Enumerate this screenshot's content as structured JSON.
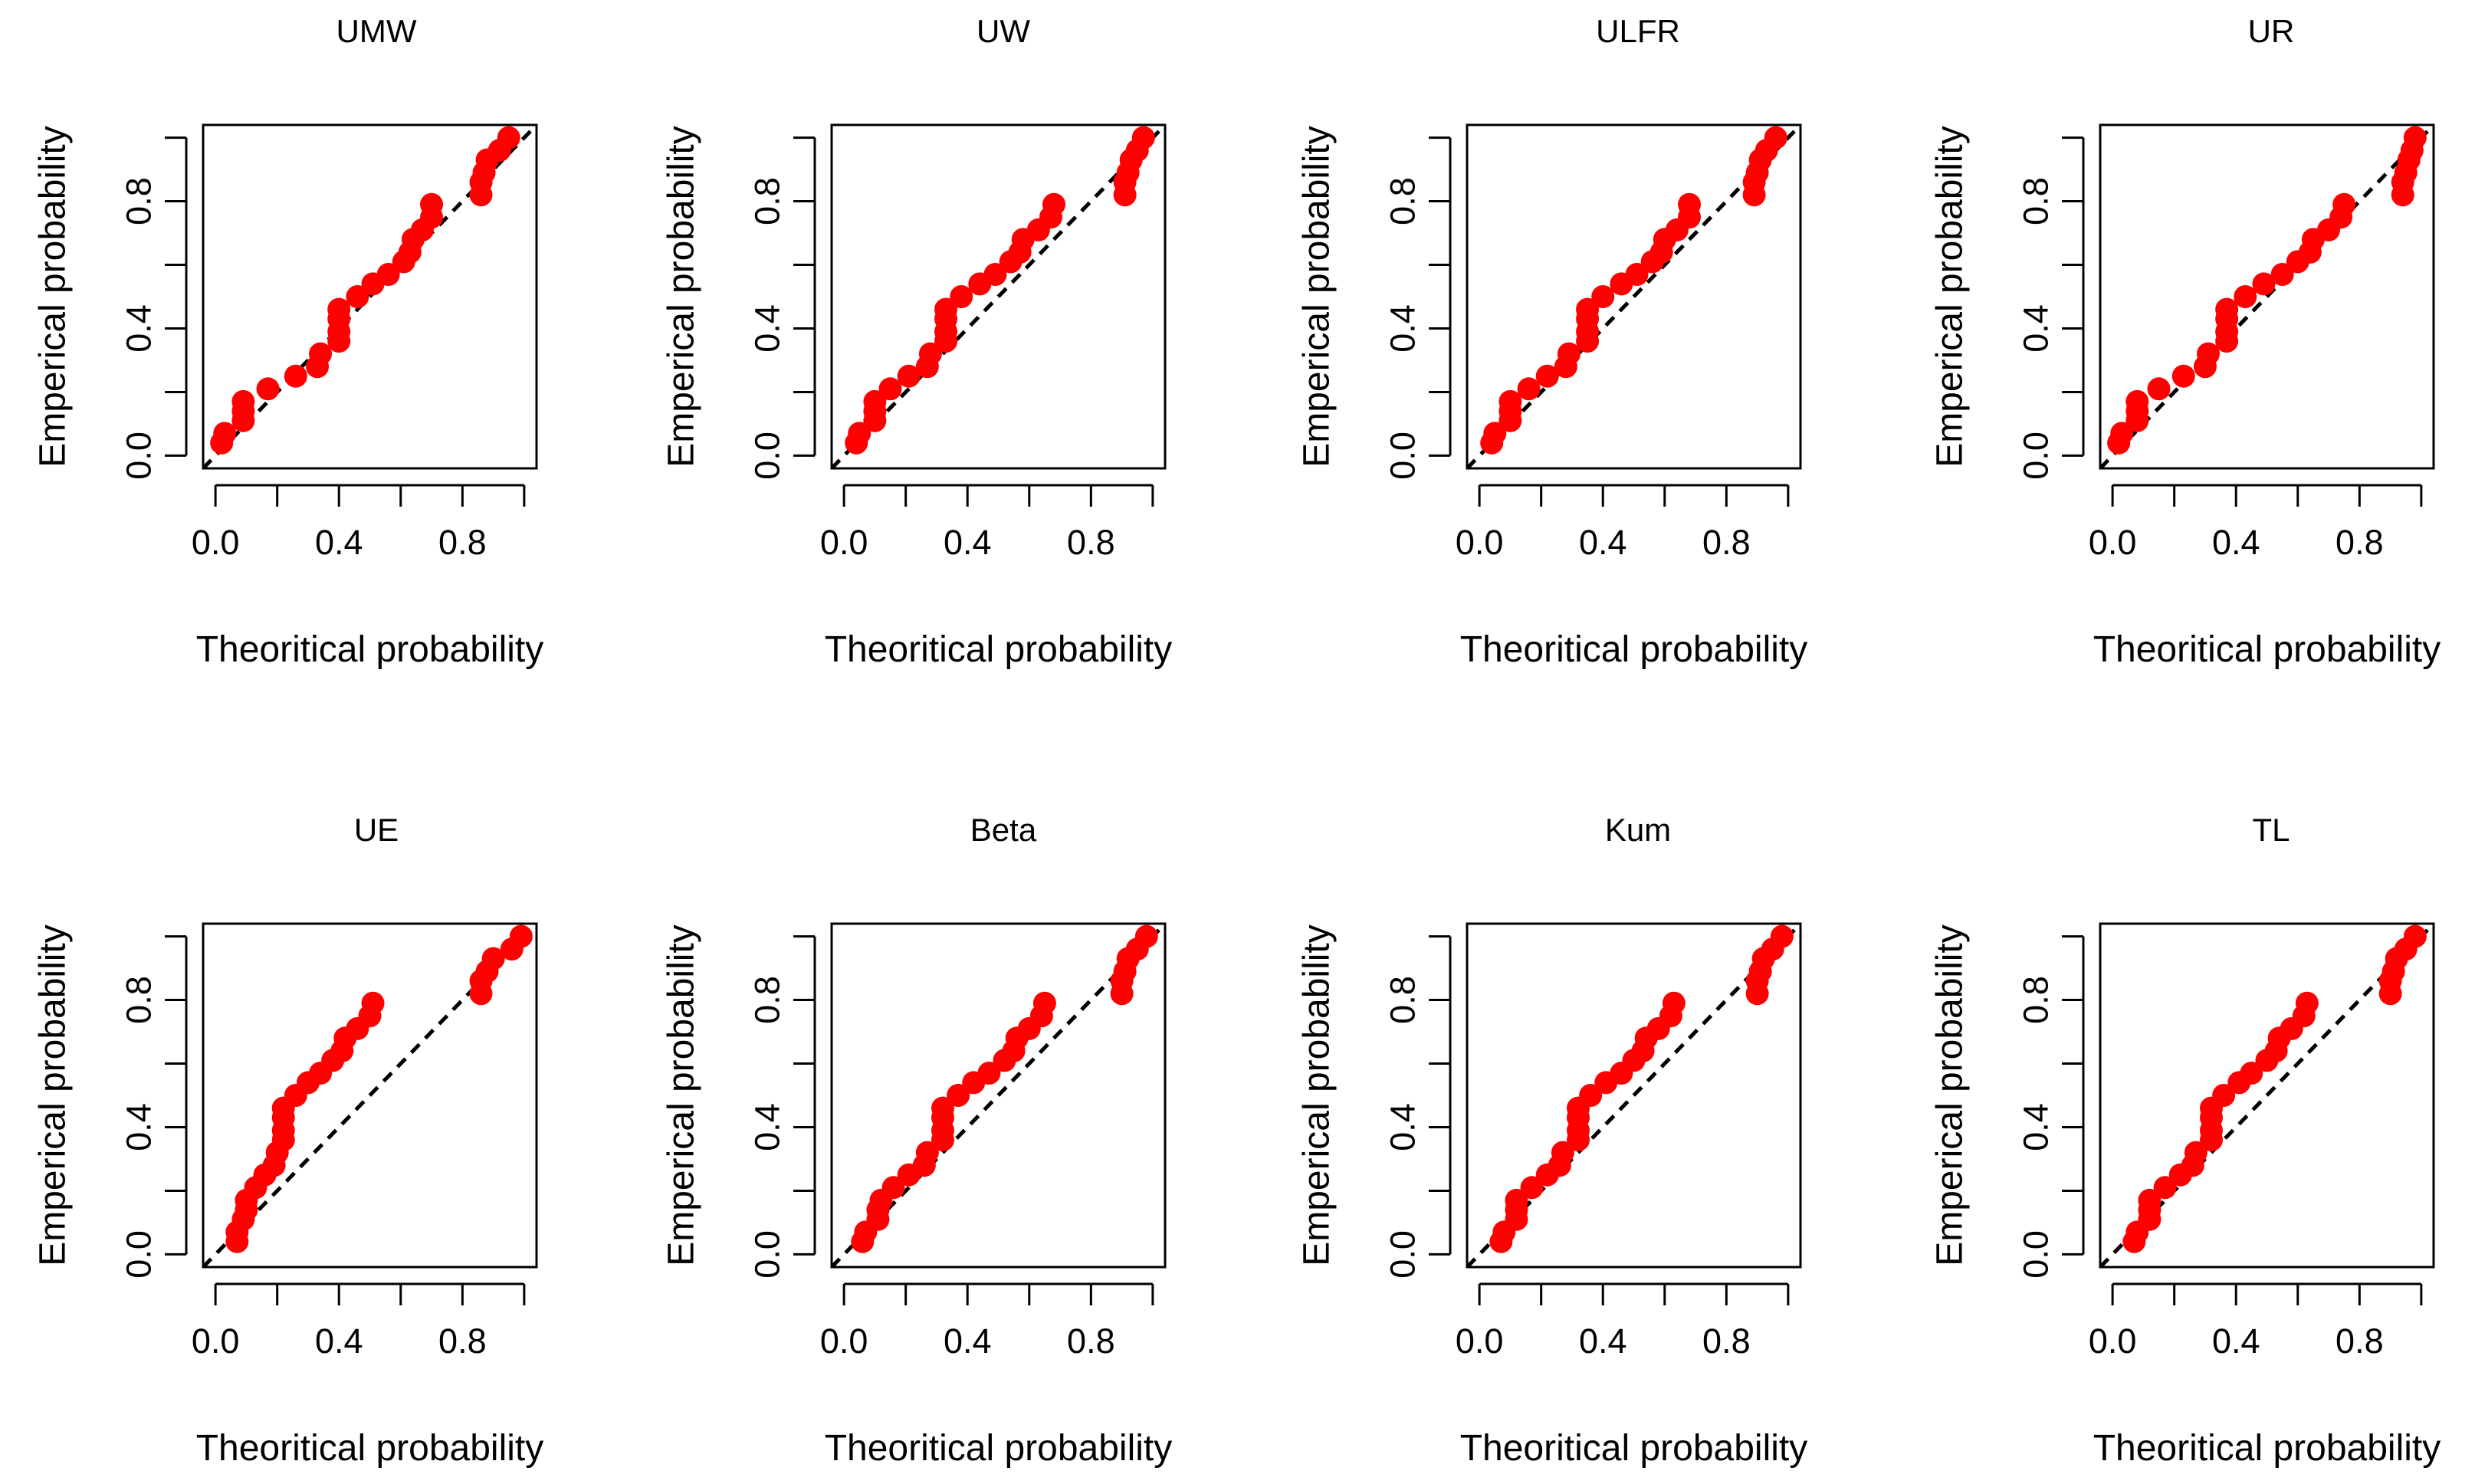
{
  "colors": {
    "points": "#ff0000",
    "reference_line": "#000000",
    "frame": "#000000",
    "background": "#ffffff"
  },
  "chart_data": [
    {
      "type": "scatter",
      "title": "UMW",
      "xlabel": "Theoritical probability",
      "ylabel": "Emperical probability",
      "xlim": [
        0,
        1
      ],
      "ylim": [
        0,
        1
      ],
      "xticks": [
        "0.0",
        "0.4",
        "0.8"
      ],
      "yticks": [
        "0.0",
        "0.4",
        "0.8"
      ],
      "reference_line": "y = x",
      "points": [
        [
          0.02,
          0.04
        ],
        [
          0.03,
          0.07
        ],
        [
          0.09,
          0.11
        ],
        [
          0.09,
          0.14
        ],
        [
          0.09,
          0.17
        ],
        [
          0.17,
          0.21
        ],
        [
          0.26,
          0.25
        ],
        [
          0.33,
          0.28
        ],
        [
          0.34,
          0.32
        ],
        [
          0.4,
          0.36
        ],
        [
          0.4,
          0.39
        ],
        [
          0.4,
          0.43
        ],
        [
          0.4,
          0.46
        ],
        [
          0.46,
          0.5
        ],
        [
          0.51,
          0.54
        ],
        [
          0.56,
          0.57
        ],
        [
          0.61,
          0.61
        ],
        [
          0.63,
          0.64
        ],
        [
          0.64,
          0.68
        ],
        [
          0.67,
          0.71
        ],
        [
          0.7,
          0.75
        ],
        [
          0.7,
          0.79
        ],
        [
          0.86,
          0.82
        ],
        [
          0.86,
          0.86
        ],
        [
          0.87,
          0.89
        ],
        [
          0.88,
          0.93
        ],
        [
          0.92,
          0.96
        ],
        [
          0.95,
          1.0
        ]
      ]
    },
    {
      "type": "scatter",
      "title": "UW",
      "xlabel": "Theoritical probability",
      "ylabel": "Emperical probability",
      "xlim": [
        0,
        1
      ],
      "ylim": [
        0,
        1
      ],
      "xticks": [
        "0.0",
        "0.4",
        "0.8"
      ],
      "yticks": [
        "0.0",
        "0.4",
        "0.8"
      ],
      "reference_line": "y = x",
      "points": [
        [
          0.04,
          0.04
        ],
        [
          0.05,
          0.07
        ],
        [
          0.1,
          0.11
        ],
        [
          0.1,
          0.14
        ],
        [
          0.1,
          0.17
        ],
        [
          0.15,
          0.21
        ],
        [
          0.21,
          0.25
        ],
        [
          0.27,
          0.28
        ],
        [
          0.28,
          0.32
        ],
        [
          0.33,
          0.36
        ],
        [
          0.33,
          0.39
        ],
        [
          0.33,
          0.43
        ],
        [
          0.33,
          0.46
        ],
        [
          0.38,
          0.5
        ],
        [
          0.44,
          0.54
        ],
        [
          0.49,
          0.57
        ],
        [
          0.54,
          0.61
        ],
        [
          0.57,
          0.64
        ],
        [
          0.58,
          0.68
        ],
        [
          0.63,
          0.71
        ],
        [
          0.67,
          0.75
        ],
        [
          0.68,
          0.79
        ],
        [
          0.91,
          0.82
        ],
        [
          0.91,
          0.86
        ],
        [
          0.92,
          0.89
        ],
        [
          0.93,
          0.93
        ],
        [
          0.95,
          0.96
        ],
        [
          0.97,
          1.0
        ]
      ]
    },
    {
      "type": "scatter",
      "title": "ULFR",
      "xlabel": "Theoritical probability",
      "ylabel": "Emperical probability",
      "xlim": [
        0,
        1
      ],
      "ylim": [
        0,
        1
      ],
      "xticks": [
        "0.0",
        "0.4",
        "0.8"
      ],
      "yticks": [
        "0.0",
        "0.4",
        "0.8"
      ],
      "reference_line": "y = x",
      "points": [
        [
          0.04,
          0.04
        ],
        [
          0.05,
          0.07
        ],
        [
          0.1,
          0.11
        ],
        [
          0.1,
          0.14
        ],
        [
          0.1,
          0.17
        ],
        [
          0.16,
          0.21
        ],
        [
          0.22,
          0.25
        ],
        [
          0.28,
          0.28
        ],
        [
          0.29,
          0.32
        ],
        [
          0.35,
          0.36
        ],
        [
          0.35,
          0.39
        ],
        [
          0.35,
          0.43
        ],
        [
          0.35,
          0.46
        ],
        [
          0.4,
          0.5
        ],
        [
          0.46,
          0.54
        ],
        [
          0.51,
          0.57
        ],
        [
          0.56,
          0.61
        ],
        [
          0.59,
          0.64
        ],
        [
          0.6,
          0.68
        ],
        [
          0.64,
          0.71
        ],
        [
          0.68,
          0.75
        ],
        [
          0.68,
          0.79
        ],
        [
          0.89,
          0.82
        ],
        [
          0.89,
          0.86
        ],
        [
          0.9,
          0.89
        ],
        [
          0.91,
          0.93
        ],
        [
          0.93,
          0.96
        ],
        [
          0.96,
          1.0
        ]
      ]
    },
    {
      "type": "scatter",
      "title": "UR",
      "xlabel": "Theoritical probability",
      "ylabel": "Emperical probability",
      "xlim": [
        0,
        1
      ],
      "ylim": [
        0,
        1
      ],
      "xticks": [
        "0.0",
        "0.4",
        "0.8"
      ],
      "yticks": [
        "0.0",
        "0.4",
        "0.8"
      ],
      "reference_line": "y = x",
      "points": [
        [
          0.02,
          0.04
        ],
        [
          0.03,
          0.07
        ],
        [
          0.08,
          0.11
        ],
        [
          0.08,
          0.14
        ],
        [
          0.08,
          0.17
        ],
        [
          0.15,
          0.21
        ],
        [
          0.23,
          0.25
        ],
        [
          0.3,
          0.28
        ],
        [
          0.31,
          0.32
        ],
        [
          0.37,
          0.36
        ],
        [
          0.37,
          0.39
        ],
        [
          0.37,
          0.43
        ],
        [
          0.37,
          0.46
        ],
        [
          0.43,
          0.5
        ],
        [
          0.49,
          0.54
        ],
        [
          0.55,
          0.57
        ],
        [
          0.6,
          0.61
        ],
        [
          0.64,
          0.64
        ],
        [
          0.65,
          0.68
        ],
        [
          0.7,
          0.71
        ],
        [
          0.74,
          0.75
        ],
        [
          0.75,
          0.79
        ],
        [
          0.94,
          0.82
        ],
        [
          0.94,
          0.86
        ],
        [
          0.95,
          0.89
        ],
        [
          0.96,
          0.93
        ],
        [
          0.97,
          0.96
        ],
        [
          0.98,
          1.0
        ]
      ]
    },
    {
      "type": "scatter",
      "title": "UE",
      "xlabel": "Theoritical probability",
      "ylabel": "Emperical probability",
      "xlim": [
        0,
        1
      ],
      "ylim": [
        0,
        1
      ],
      "xticks": [
        "0.0",
        "0.4",
        "0.8"
      ],
      "yticks": [
        "0.0",
        "0.4",
        "0.8"
      ],
      "reference_line": "y = x",
      "points": [
        [
          0.07,
          0.04
        ],
        [
          0.07,
          0.07
        ],
        [
          0.09,
          0.11
        ],
        [
          0.1,
          0.14
        ],
        [
          0.1,
          0.17
        ],
        [
          0.13,
          0.21
        ],
        [
          0.16,
          0.25
        ],
        [
          0.19,
          0.28
        ],
        [
          0.2,
          0.32
        ],
        [
          0.22,
          0.36
        ],
        [
          0.22,
          0.39
        ],
        [
          0.22,
          0.43
        ],
        [
          0.22,
          0.46
        ],
        [
          0.26,
          0.5
        ],
        [
          0.3,
          0.54
        ],
        [
          0.34,
          0.57
        ],
        [
          0.38,
          0.61
        ],
        [
          0.41,
          0.64
        ],
        [
          0.42,
          0.68
        ],
        [
          0.46,
          0.71
        ],
        [
          0.5,
          0.75
        ],
        [
          0.51,
          0.79
        ],
        [
          0.86,
          0.82
        ],
        [
          0.86,
          0.86
        ],
        [
          0.88,
          0.89
        ],
        [
          0.9,
          0.93
        ],
        [
          0.96,
          0.96
        ],
        [
          0.99,
          1.0
        ]
      ]
    },
    {
      "type": "scatter",
      "title": "Beta",
      "xlabel": "Theoritical probability",
      "ylabel": "Emperical probability",
      "xlim": [
        0,
        1
      ],
      "ylim": [
        0,
        1
      ],
      "xticks": [
        "0.0",
        "0.4",
        "0.8"
      ],
      "yticks": [
        "0.0",
        "0.4",
        "0.8"
      ],
      "reference_line": "y = x",
      "points": [
        [
          0.06,
          0.04
        ],
        [
          0.07,
          0.07
        ],
        [
          0.11,
          0.11
        ],
        [
          0.11,
          0.14
        ],
        [
          0.12,
          0.17
        ],
        [
          0.16,
          0.21
        ],
        [
          0.21,
          0.25
        ],
        [
          0.26,
          0.28
        ],
        [
          0.27,
          0.32
        ],
        [
          0.32,
          0.36
        ],
        [
          0.32,
          0.39
        ],
        [
          0.32,
          0.43
        ],
        [
          0.32,
          0.46
        ],
        [
          0.37,
          0.5
        ],
        [
          0.42,
          0.54
        ],
        [
          0.47,
          0.57
        ],
        [
          0.52,
          0.61
        ],
        [
          0.55,
          0.64
        ],
        [
          0.56,
          0.68
        ],
        [
          0.6,
          0.71
        ],
        [
          0.64,
          0.75
        ],
        [
          0.65,
          0.79
        ],
        [
          0.9,
          0.82
        ],
        [
          0.9,
          0.86
        ],
        [
          0.91,
          0.89
        ],
        [
          0.92,
          0.93
        ],
        [
          0.95,
          0.96
        ],
        [
          0.98,
          1.0
        ]
      ]
    },
    {
      "type": "scatter",
      "title": "Kum",
      "xlabel": "Theoritical probability",
      "ylabel": "Emperical probability",
      "xlim": [
        0,
        1
      ],
      "ylim": [
        0,
        1
      ],
      "xticks": [
        "0.0",
        "0.4",
        "0.8"
      ],
      "yticks": [
        "0.0",
        "0.4",
        "0.8"
      ],
      "reference_line": "y = x",
      "points": [
        [
          0.07,
          0.04
        ],
        [
          0.08,
          0.07
        ],
        [
          0.12,
          0.11
        ],
        [
          0.12,
          0.14
        ],
        [
          0.12,
          0.17
        ],
        [
          0.17,
          0.21
        ],
        [
          0.22,
          0.25
        ],
        [
          0.26,
          0.28
        ],
        [
          0.27,
          0.32
        ],
        [
          0.32,
          0.36
        ],
        [
          0.32,
          0.39
        ],
        [
          0.32,
          0.43
        ],
        [
          0.32,
          0.46
        ],
        [
          0.36,
          0.5
        ],
        [
          0.41,
          0.54
        ],
        [
          0.46,
          0.57
        ],
        [
          0.5,
          0.61
        ],
        [
          0.53,
          0.64
        ],
        [
          0.54,
          0.68
        ],
        [
          0.58,
          0.71
        ],
        [
          0.62,
          0.75
        ],
        [
          0.63,
          0.79
        ],
        [
          0.9,
          0.82
        ],
        [
          0.9,
          0.86
        ],
        [
          0.91,
          0.89
        ],
        [
          0.92,
          0.93
        ],
        [
          0.95,
          0.96
        ],
        [
          0.98,
          1.0
        ]
      ]
    },
    {
      "type": "scatter",
      "title": "TL",
      "xlabel": "Theoritical probability",
      "ylabel": "Emperical probability",
      "xlim": [
        0,
        1
      ],
      "ylim": [
        0,
        1
      ],
      "xticks": [
        "0.0",
        "0.4",
        "0.8"
      ],
      "yticks": [
        "0.0",
        "0.4",
        "0.8"
      ],
      "reference_line": "y = x",
      "points": [
        [
          0.07,
          0.04
        ],
        [
          0.08,
          0.07
        ],
        [
          0.12,
          0.11
        ],
        [
          0.12,
          0.14
        ],
        [
          0.12,
          0.17
        ],
        [
          0.17,
          0.21
        ],
        [
          0.22,
          0.25
        ],
        [
          0.26,
          0.28
        ],
        [
          0.27,
          0.32
        ],
        [
          0.32,
          0.36
        ],
        [
          0.32,
          0.39
        ],
        [
          0.32,
          0.43
        ],
        [
          0.32,
          0.46
        ],
        [
          0.36,
          0.5
        ],
        [
          0.41,
          0.54
        ],
        [
          0.45,
          0.57
        ],
        [
          0.5,
          0.61
        ],
        [
          0.53,
          0.64
        ],
        [
          0.54,
          0.68
        ],
        [
          0.58,
          0.71
        ],
        [
          0.62,
          0.75
        ],
        [
          0.63,
          0.79
        ],
        [
          0.9,
          0.82
        ],
        [
          0.9,
          0.86
        ],
        [
          0.91,
          0.89
        ],
        [
          0.92,
          0.93
        ],
        [
          0.95,
          0.96
        ],
        [
          0.98,
          1.0
        ]
      ]
    }
  ]
}
